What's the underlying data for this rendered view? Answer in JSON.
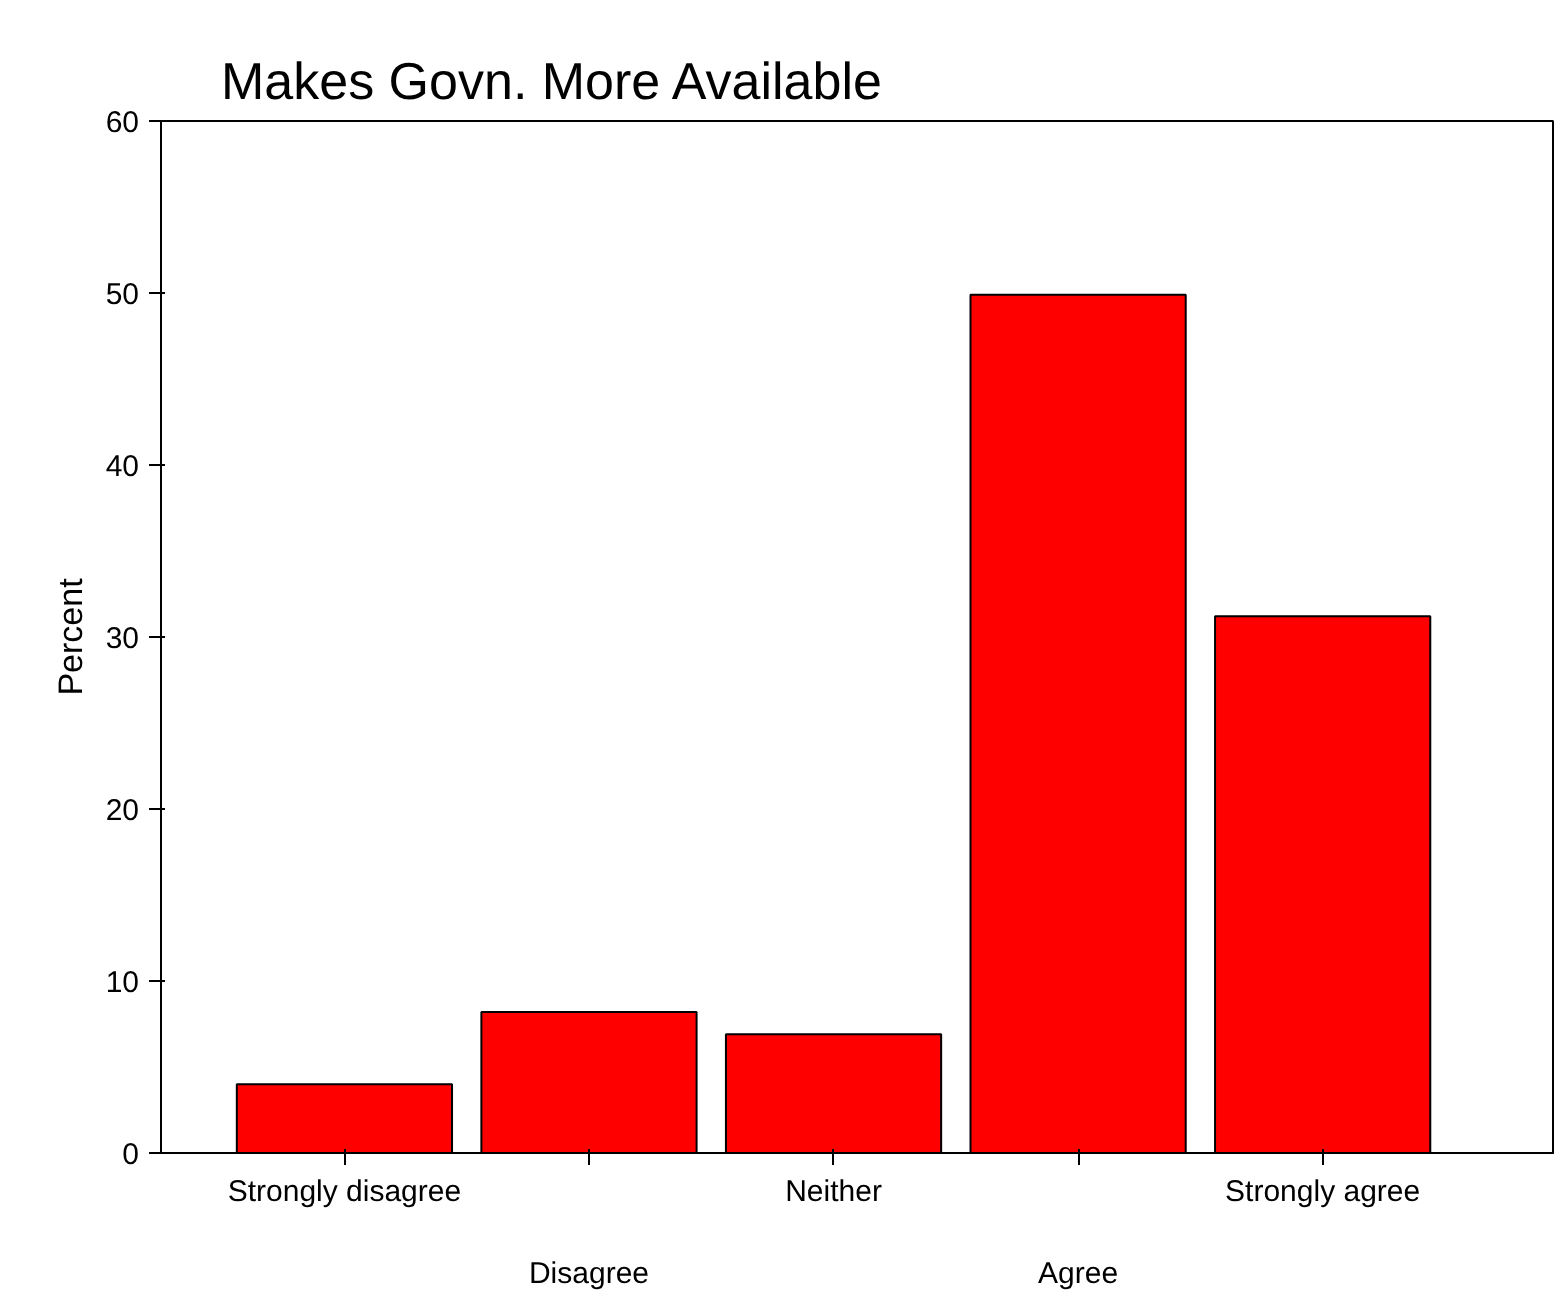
{
  "chart_data": {
    "type": "bar",
    "title": "Makes Govn. More Available",
    "ylabel": "Percent",
    "categories": [
      "Strongly disagree",
      "Disagree",
      "Neither",
      "Agree",
      "Strongly agree"
    ],
    "values": [
      4.0,
      8.2,
      6.9,
      49.9,
      31.2
    ],
    "color": "#ff0000",
    "ylim": [
      0,
      60
    ],
    "yticks": [
      0,
      10,
      20,
      30,
      40,
      50,
      60
    ],
    "grid": false
  }
}
